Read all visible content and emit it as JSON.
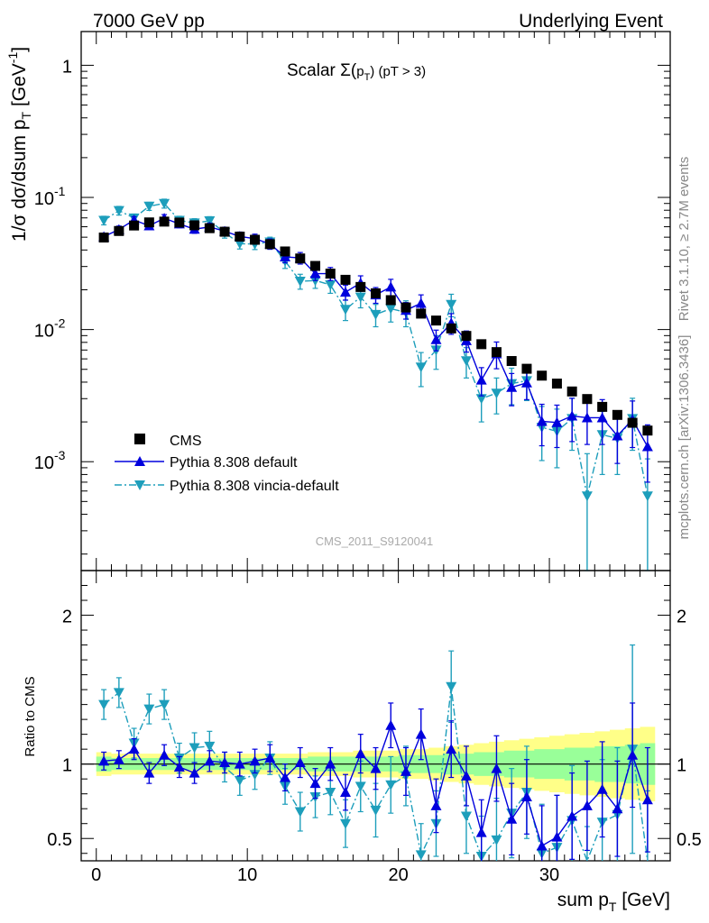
{
  "header": {
    "left": "7000 GeV pp",
    "right": "Underlying Event"
  },
  "side_labels": {
    "rivet": "Rivet 3.1.10, ≥ 2.7M events",
    "mcplots": "mcplots.cern.ch [arXiv:1306.3436]"
  },
  "analysis_id": "CMS_2011_S9120041",
  "colors": {
    "cms": "#000000",
    "pythia_default": "#0000dd",
    "pythia_vincia": "#1d9ebb",
    "band_yellow": "#ffff88",
    "band_green": "#99ff99"
  },
  "chart_data": [
    {
      "type": "scatter",
      "panel": "main",
      "title": "Scalar Σ(p_T) (pT > 3)",
      "xlabel": "sum p_T [GeV]",
      "ylabel": "1/σ dσ/dsum p_T [GeV^-1]",
      "yscale": "log",
      "xlim": [
        -1,
        38
      ],
      "ylim": [
        0.00015,
        1.8
      ],
      "y_ticks": [
        0.001,
        0.01,
        0.1,
        1
      ],
      "y_tick_labels": [
        "10^-3",
        "10^-2",
        "10^-1",
        "1"
      ],
      "legend_position": "bottom-left",
      "x": [
        0.5,
        1.5,
        2.5,
        3.5,
        4.5,
        5.5,
        6.5,
        7.5,
        8.5,
        9.5,
        10.5,
        11.5,
        12.5,
        13.5,
        14.5,
        15.5,
        16.5,
        17.5,
        18.5,
        19.5,
        20.5,
        21.5,
        22.5,
        23.5,
        24.5,
        25.5,
        26.5,
        27.5,
        28.5,
        29.5,
        30.5,
        31.5,
        32.5,
        33.5,
        34.5,
        35.5,
        36.5
      ],
      "series": [
        {
          "name": "CMS",
          "marker": "square",
          "values": [
            0.0497,
            0.0557,
            0.0613,
            0.0647,
            0.0656,
            0.0645,
            0.0615,
            0.0585,
            0.055,
            0.0505,
            0.0478,
            0.0443,
            0.039,
            0.0345,
            0.0303,
            0.0265,
            0.0238,
            0.021,
            0.0188,
            0.0167,
            0.0147,
            0.0132,
            0.0117,
            0.0102,
            0.00895,
            0.00775,
            0.00675,
            0.00578,
            0.00505,
            0.00448,
            0.0039,
            0.0034,
            0.00298,
            0.0026,
            0.00226,
            0.00197,
            0.00172
          ]
        },
        {
          "name": "Pythia 8.308 default",
          "marker": "triangle-up",
          "line": "solid",
          "values": [
            0.0505,
            0.0572,
            0.0675,
            0.061,
            0.0696,
            0.063,
            0.0575,
            0.0598,
            0.0555,
            0.0507,
            0.0487,
            0.0445,
            0.0355,
            0.0348,
            0.0265,
            0.0265,
            0.0192,
            0.0225,
            0.0183,
            0.021,
            0.014,
            0.0158,
            0.0084,
            0.0112,
            0.00825,
            0.00415,
            0.00655,
            0.00365,
            0.00395,
            0.00202,
            0.00198,
            0.00222,
            0.00215,
            0.00215,
            0.00157,
            0.00208,
            0.0013
          ],
          "err": [
            0.003,
            0.0035,
            0.004,
            0.004,
            0.0045,
            0.004,
            0.004,
            0.004,
            0.004,
            0.004,
            0.004,
            0.004,
            0.0035,
            0.0035,
            0.003,
            0.003,
            0.0025,
            0.003,
            0.0025,
            0.003,
            0.002,
            0.0025,
            0.0015,
            0.002,
            0.0015,
            0.001,
            0.0015,
            0.001,
            0.001,
            0.0007,
            0.0007,
            0.0008,
            0.0008,
            0.0008,
            0.0006,
            0.0008,
            0.0006
          ]
        },
        {
          "name": "Pythia 8.308 vincia-default",
          "marker": "triangle-down",
          "line": "dashdot",
          "values": [
            0.067,
            0.0795,
            0.0698,
            0.0858,
            0.09,
            0.067,
            0.064,
            0.0665,
            0.0542,
            0.0447,
            0.0443,
            0.046,
            0.033,
            0.0232,
            0.0235,
            0.0218,
            0.0142,
            0.0176,
            0.013,
            0.0144,
            0.0135,
            0.0052,
            0.007,
            0.0155,
            0.0058,
            0.003,
            0.0033,
            0.0039,
            0.0041,
            0.00182,
            0.0017,
            0.00212,
            0.00055,
            0.0016,
            0.0015,
            0.00212,
            0.00055
          ],
          "err": [
            0.005,
            0.006,
            0.005,
            0.006,
            0.007,
            0.005,
            0.005,
            0.005,
            0.005,
            0.004,
            0.004,
            0.004,
            0.004,
            0.003,
            0.003,
            0.003,
            0.0025,
            0.003,
            0.0025,
            0.003,
            0.003,
            0.0015,
            0.002,
            0.003,
            0.0015,
            0.001,
            0.001,
            0.0012,
            0.0012,
            0.0008,
            0.0008,
            0.0009,
            0.0006,
            0.0008,
            0.0007,
            0.0009,
            0.0005
          ]
        }
      ]
    },
    {
      "type": "line",
      "panel": "ratio",
      "xlabel": "sum p_T [GeV]",
      "ylabel": "Ratio to CMS",
      "xlim": [
        -1,
        38
      ],
      "ylim": [
        0.35,
        2.3
      ],
      "y_ticks": [
        0.5,
        1,
        2
      ],
      "y_tick_labels": [
        "0.5",
        "1",
        "2"
      ],
      "x_ticks": [
        0,
        10,
        20,
        30
      ],
      "x_tick_labels": [
        "0",
        "10",
        "20",
        "30"
      ],
      "x": [
        0.5,
        1.5,
        2.5,
        3.5,
        4.5,
        5.5,
        6.5,
        7.5,
        8.5,
        9.5,
        10.5,
        11.5,
        12.5,
        13.5,
        14.5,
        15.5,
        16.5,
        17.5,
        18.5,
        19.5,
        20.5,
        21.5,
        22.5,
        23.5,
        24.5,
        25.5,
        26.5,
        27.5,
        28.5,
        29.5,
        30.5,
        31.5,
        32.5,
        33.5,
        34.5,
        35.5,
        36.5
      ],
      "bands": {
        "yellow_half_width": [
          0.08,
          0.07,
          0.07,
          0.07,
          0.07,
          0.07,
          0.07,
          0.07,
          0.07,
          0.07,
          0.07,
          0.07,
          0.07,
          0.07,
          0.08,
          0.08,
          0.08,
          0.09,
          0.09,
          0.09,
          0.1,
          0.1,
          0.11,
          0.12,
          0.13,
          0.14,
          0.15,
          0.16,
          0.17,
          0.18,
          0.19,
          0.2,
          0.21,
          0.22,
          0.23,
          0.24,
          0.25
        ],
        "green_half_width": [
          0.05,
          0.04,
          0.04,
          0.04,
          0.04,
          0.04,
          0.04,
          0.04,
          0.04,
          0.04,
          0.04,
          0.04,
          0.04,
          0.04,
          0.05,
          0.05,
          0.05,
          0.05,
          0.05,
          0.05,
          0.06,
          0.06,
          0.06,
          0.07,
          0.07,
          0.08,
          0.08,
          0.09,
          0.09,
          0.1,
          0.1,
          0.11,
          0.11,
          0.12,
          0.12,
          0.13,
          0.14
        ]
      },
      "series": [
        {
          "name": "Pythia 8.308 default",
          "values": [
            1.02,
            1.03,
            1.1,
            0.94,
            1.06,
            0.98,
            0.94,
            1.02,
            1.01,
            1.0,
            1.02,
            1.04,
            0.91,
            1.01,
            0.87,
            1.0,
            0.81,
            1.07,
            0.97,
            1.26,
            0.95,
            1.2,
            0.72,
            1.1,
            0.92,
            0.54,
            0.97,
            0.63,
            0.78,
            0.45,
            0.51,
            0.65,
            0.72,
            0.83,
            0.7,
            1.06,
            0.76
          ],
          "err": [
            0.06,
            0.06,
            0.07,
            0.07,
            0.07,
            0.07,
            0.07,
            0.07,
            0.07,
            0.08,
            0.08,
            0.09,
            0.09,
            0.1,
            0.1,
            0.11,
            0.12,
            0.13,
            0.14,
            0.15,
            0.16,
            0.17,
            0.18,
            0.19,
            0.2,
            0.22,
            0.22,
            0.24,
            0.25,
            0.27,
            0.28,
            0.29,
            0.3,
            0.32,
            0.32,
            0.35,
            0.35
          ]
        },
        {
          "name": "Pythia 8.308 vincia-default",
          "values": [
            1.4,
            1.48,
            1.14,
            1.37,
            1.4,
            1.04,
            1.11,
            1.12,
            0.98,
            0.89,
            0.93,
            1.04,
            0.85,
            0.68,
            0.78,
            0.81,
            0.6,
            0.85,
            0.69,
            0.86,
            0.92,
            0.39,
            0.6,
            1.52,
            0.65,
            0.38,
            0.49,
            0.67,
            0.81,
            0.4,
            0.44,
            0.62,
            0.18,
            0.61,
            0.66,
            1.1,
            0.32
          ],
          "err": [
            0.1,
            0.1,
            0.1,
            0.1,
            0.1,
            0.1,
            0.1,
            0.1,
            0.1,
            0.1,
            0.1,
            0.11,
            0.12,
            0.13,
            0.14,
            0.15,
            0.16,
            0.17,
            0.18,
            0.19,
            0.2,
            0.21,
            0.22,
            0.24,
            0.25,
            0.27,
            0.28,
            0.3,
            0.31,
            0.33,
            0.35,
            0.37,
            0.4,
            0.42,
            0.45,
            0.7,
            0.5
          ]
        }
      ]
    }
  ]
}
